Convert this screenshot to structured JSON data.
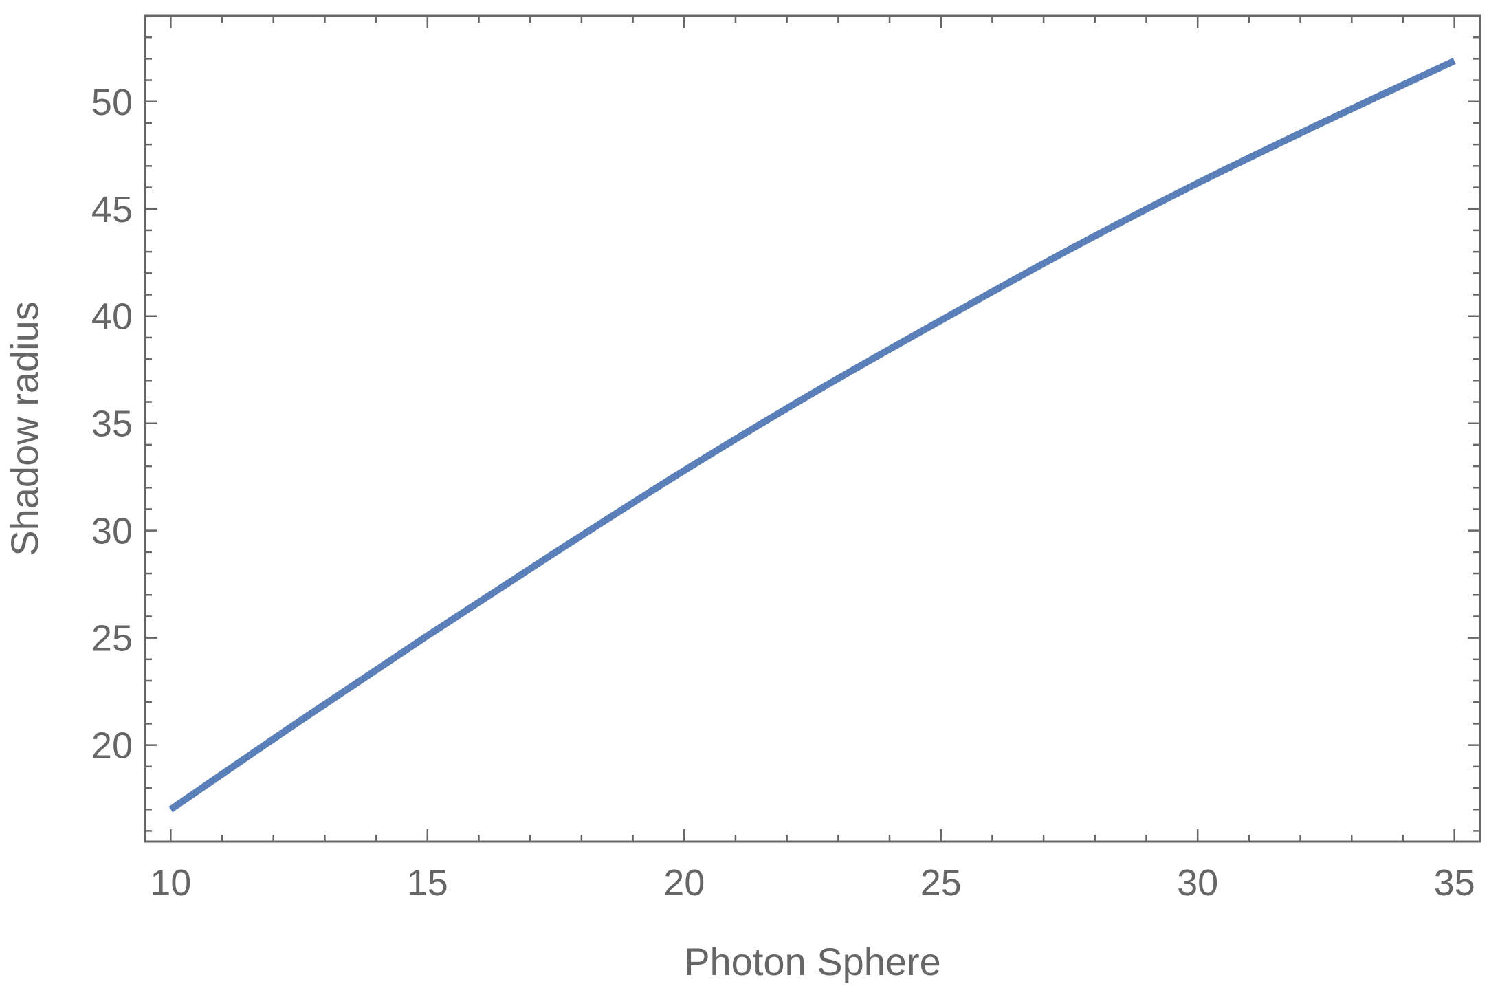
{
  "chart_data": {
    "type": "line",
    "title": "",
    "xlabel": "Photon Sphere",
    "ylabel": "Shadow radius",
    "xlim": [
      9.5,
      35.5
    ],
    "ylim": [
      15.5,
      54
    ],
    "x_major_ticks": [
      10,
      15,
      20,
      25,
      30,
      35
    ],
    "x_tick_labels": [
      "10",
      "15",
      "20",
      "25",
      "30",
      "35"
    ],
    "x_minor_step": 1,
    "y_major_ticks": [
      20,
      25,
      30,
      35,
      40,
      45,
      50
    ],
    "y_tick_labels": [
      "20",
      "25",
      "30",
      "35",
      "40",
      "45",
      "50"
    ],
    "y_minor_step": 1,
    "grid": false,
    "legend": "none",
    "series": [
      {
        "color": "#5b7fb8",
        "x": [
          10,
          12.5,
          15,
          17.5,
          20,
          22.5,
          25,
          27.5,
          30,
          32.5,
          35
        ],
        "y": [
          17.0,
          21.1,
          25.1,
          29.0,
          32.8,
          36.4,
          39.8,
          43.1,
          46.2,
          49.1,
          51.9
        ]
      }
    ],
    "colors": {
      "axis": "#666666",
      "background": "#ffffff"
    }
  }
}
